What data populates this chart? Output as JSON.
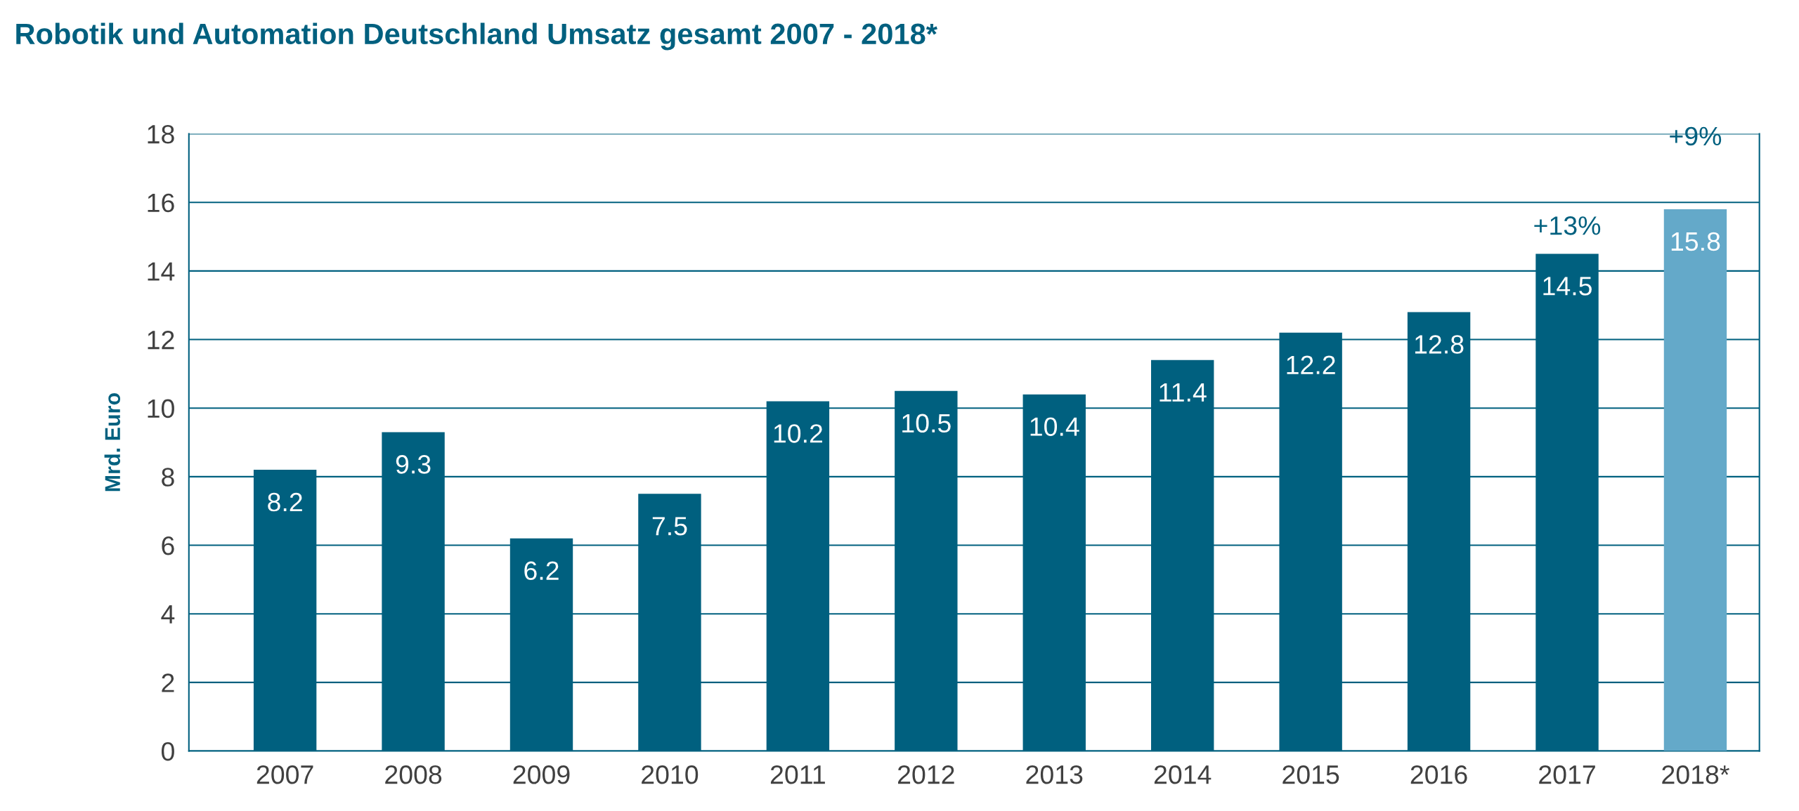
{
  "chart_data": {
    "type": "bar",
    "title": "Robotik und Automation Deutschland Umsatz gesamt 2007 - 2018*",
    "ylabel": "Mrd. Euro",
    "categories": [
      "2007",
      "2008",
      "2009",
      "2010",
      "2011",
      "2012",
      "2013",
      "2014",
      "2015",
      "2016",
      "2017",
      "2018*"
    ],
    "values": [
      8.2,
      9.3,
      6.2,
      7.5,
      10.2,
      10.5,
      10.4,
      11.4,
      12.2,
      12.8,
      14.5,
      15.8
    ],
    "colors": [
      "#00607f",
      "#00607f",
      "#00607f",
      "#00607f",
      "#00607f",
      "#00607f",
      "#00607f",
      "#00607f",
      "#00607f",
      "#00607f",
      "#00607f",
      "#64a9c9"
    ],
    "ylim": [
      0,
      18
    ],
    "yticks": [
      0,
      2,
      4,
      6,
      8,
      10,
      12,
      14,
      16,
      18
    ],
    "grid": "y",
    "data_labels": true,
    "annotations": [
      {
        "text": "+13%",
        "x": "2017",
        "y": 14.5
      },
      {
        "text": "+9%",
        "x": "2018*",
        "y": 15.8
      }
    ]
  }
}
